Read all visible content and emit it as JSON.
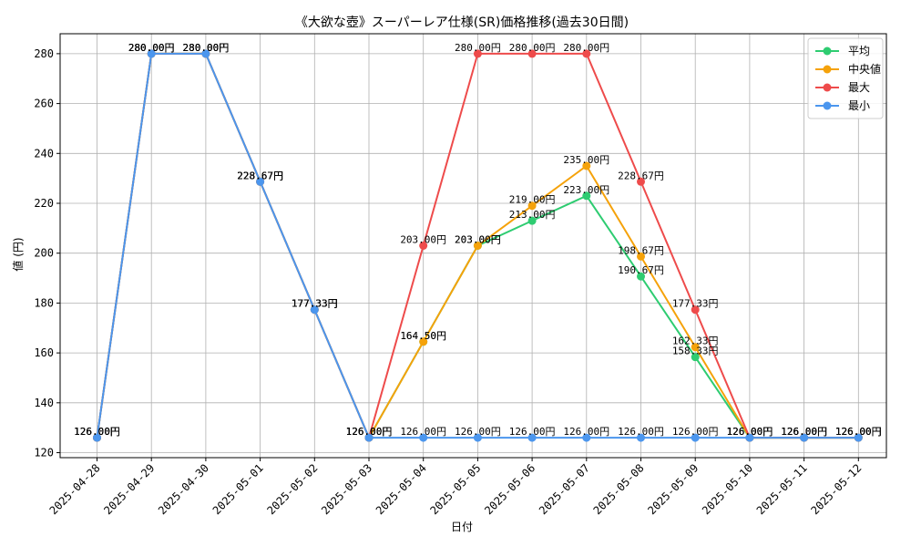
{
  "chart_data": {
    "type": "line",
    "title": "《大欲な壺》スーパーレア仕様(SR)価格推移(過去30日間)",
    "xlabel": "日付",
    "ylabel": "値 (円)",
    "ylim": [
      118,
      288
    ],
    "yticks": [
      120,
      140,
      160,
      180,
      200,
      220,
      240,
      260,
      280
    ],
    "grid": true,
    "legend_position": "top-right",
    "value_suffix": "円",
    "categories": [
      "2025-04-28",
      "2025-04-29",
      "2025-04-30",
      "2025-05-01",
      "2025-05-02",
      "2025-05-03",
      "2025-05-04",
      "2025-05-05",
      "2025-05-06",
      "2025-05-07",
      "2025-05-08",
      "2025-05-09",
      "2025-05-10",
      "2025-05-11",
      "2025-05-12"
    ],
    "series": [
      {
        "name": "平均",
        "color": "#2ecc71",
        "values": [
          126.0,
          280.0,
          280.0,
          228.67,
          177.33,
          126.0,
          164.5,
          203.0,
          213.0,
          223.0,
          190.67,
          158.33,
          126.0,
          126.0,
          126.0
        ]
      },
      {
        "name": "中央値",
        "color": "#f5a20a",
        "values": [
          126.0,
          280.0,
          280.0,
          228.67,
          177.33,
          126.0,
          164.5,
          203.0,
          219.0,
          235.0,
          198.67,
          162.33,
          126.0,
          126.0,
          126.0
        ]
      },
      {
        "name": "最大",
        "color": "#ee4b4b",
        "values": [
          126.0,
          280.0,
          280.0,
          228.67,
          177.33,
          126.0,
          203.0,
          280.0,
          280.0,
          280.0,
          228.67,
          177.33,
          126.0,
          126.0,
          126.0
        ]
      },
      {
        "name": "最小",
        "color": "#4b96ee",
        "values": [
          126.0,
          280.0,
          280.0,
          228.67,
          177.33,
          126.0,
          126.0,
          126.0,
          126.0,
          126.0,
          126.0,
          126.0,
          126.0,
          126.0,
          126.0
        ]
      }
    ]
  }
}
